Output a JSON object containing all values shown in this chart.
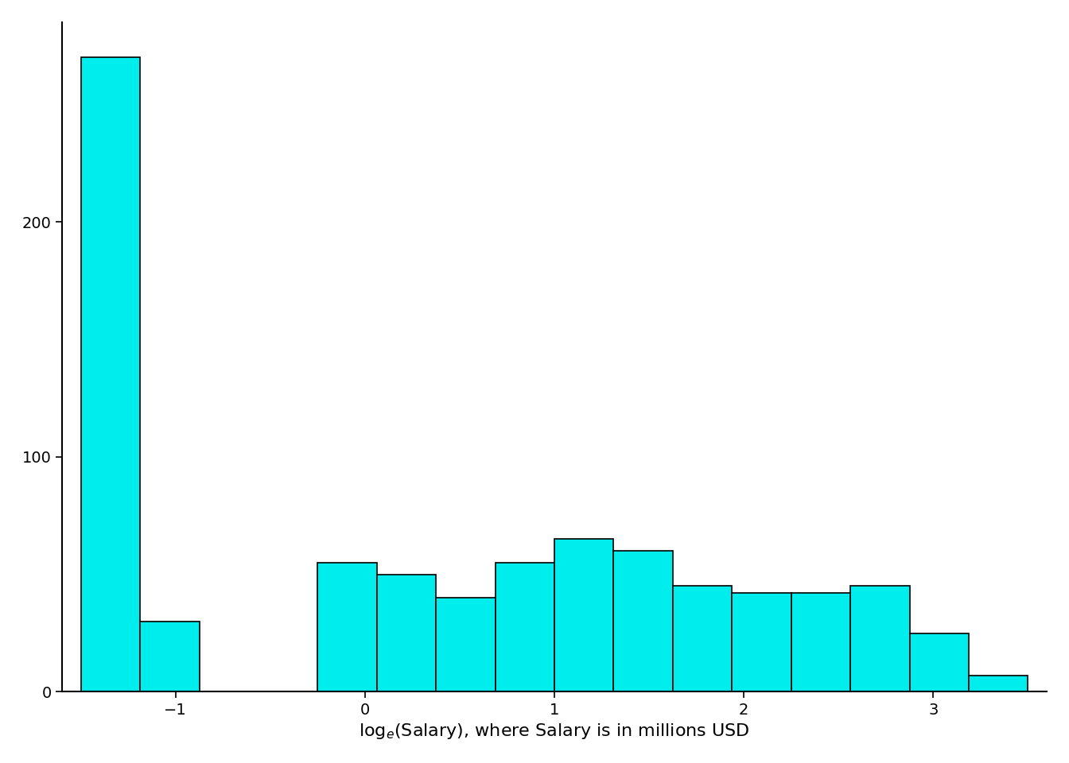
{
  "bin_edges": [
    -1.5,
    -1.1875,
    -0.875,
    -0.5625,
    -0.25,
    0.0625,
    0.375,
    0.6875,
    1.0,
    1.3125,
    1.625,
    1.9375,
    2.25,
    2.5625,
    2.875,
    3.1875,
    3.5
  ],
  "counts": [
    270,
    30,
    0,
    0,
    55,
    50,
    40,
    55,
    65,
    60,
    45,
    42,
    42,
    45,
    25,
    7
  ],
  "bar_color": "#00EDED",
  "bar_edgecolor": "#000000",
  "xlabel": "log$_e$(Salary), where Salary is in millions USD",
  "xlim_left": -1.6,
  "xlim_right": 3.6,
  "ylim": [
    0,
    285
  ],
  "yticks": [
    0,
    100,
    200
  ],
  "xticks": [
    -1,
    0,
    1,
    2,
    3
  ],
  "background_color": "#ffffff",
  "xlabel_fontsize": 16,
  "tick_fontsize": 14,
  "linewidth": 1.2
}
